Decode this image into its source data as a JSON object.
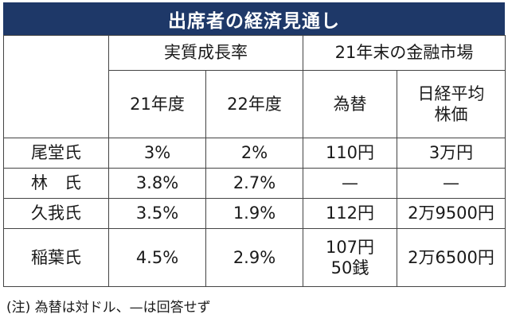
{
  "title": "出席者の経済見通し",
  "header": {
    "group_growth": "実質成長率",
    "group_market": "21年末の金融市場",
    "col_fy21": "21年度",
    "col_fy22": "22年度",
    "col_fx": "為替",
    "col_nikkei_line1": "日経平均",
    "col_nikkei_line2": "株価"
  },
  "rows": [
    {
      "name": "尾堂氏",
      "fy21": "3%",
      "fy22": "2%",
      "fx": "110円",
      "fx2": "",
      "nikkei": "3万円"
    },
    {
      "name": "林　氏",
      "fy21": "3.8%",
      "fy22": "2.7%",
      "fx": "—",
      "fx2": "",
      "nikkei": "—"
    },
    {
      "name": "久我氏",
      "fy21": "3.5%",
      "fy22": "1.9%",
      "fx": "112円",
      "fx2": "",
      "nikkei": "2万9500円"
    },
    {
      "name": "稲葉氏",
      "fy21": "4.5%",
      "fy22": "2.9%",
      "fx": "107円",
      "fx2": "50銭",
      "nikkei": "2万6500円"
    }
  ],
  "note": "(注) 為替は対ドル、—は回答せず",
  "colors": {
    "title_bg": "#1e3868",
    "title_text": "#ffffff",
    "border": "#444444"
  }
}
